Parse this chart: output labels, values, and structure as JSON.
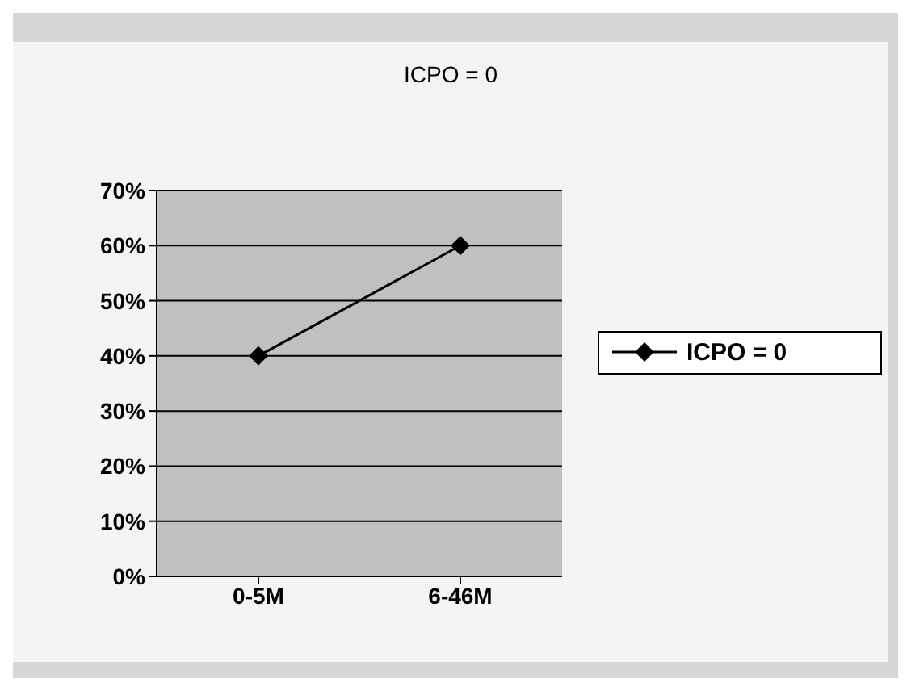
{
  "chart_data": {
    "type": "line",
    "title": "ICPO = 0",
    "categories": [
      "0-5M",
      "6-46M"
    ],
    "series": [
      {
        "name": "ICPO = 0",
        "color": "#000000",
        "values": [
          40,
          60
        ]
      }
    ],
    "ylim": [
      0,
      70
    ],
    "yticks": [
      {
        "value": 0,
        "label": "0%"
      },
      {
        "value": 10,
        "label": "10%"
      },
      {
        "value": 20,
        "label": "20%"
      },
      {
        "value": 30,
        "label": "30%"
      },
      {
        "value": 40,
        "label": "40%"
      },
      {
        "value": 50,
        "label": "50%"
      },
      {
        "value": 60,
        "label": "60%"
      },
      {
        "value": 70,
        "label": "70%"
      }
    ],
    "grid": "y",
    "legend": "right",
    "marker": "diamond"
  }
}
